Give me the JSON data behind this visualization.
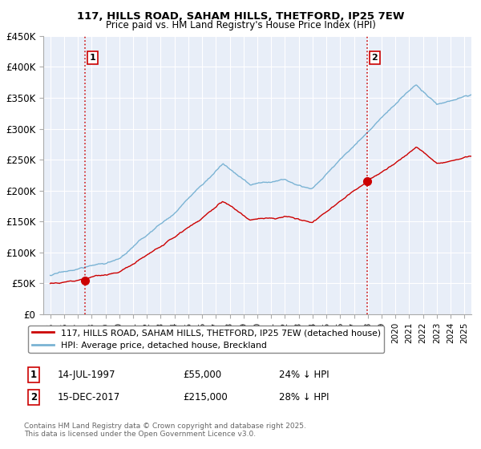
{
  "title_line1": "117, HILLS ROAD, SAHAM HILLS, THETFORD, IP25 7EW",
  "title_line2": "Price paid vs. HM Land Registry's House Price Index (HPI)",
  "hpi_color": "#7ab3d4",
  "price_color": "#cc0000",
  "vline_color": "#cc0000",
  "background_color": "#e8eef8",
  "grid_color": "#ffffff",
  "yticks": [
    0,
    50000,
    100000,
    150000,
    200000,
    250000,
    300000,
    350000,
    400000,
    450000
  ],
  "ytick_labels": [
    "£0",
    "£50K",
    "£100K",
    "£150K",
    "£200K",
    "£250K",
    "£300K",
    "£350K",
    "£400K",
    "£450K"
  ],
  "sale1_date": 1997.54,
  "sale1_price": 55000,
  "sale1_label": "1",
  "sale2_date": 2017.96,
  "sale2_price": 215000,
  "sale2_label": "2",
  "legend_entry1": "117, HILLS ROAD, SAHAM HILLS, THETFORD, IP25 7EW (detached house)",
  "legend_entry2": "HPI: Average price, detached house, Breckland",
  "annotation1_date": "14-JUL-1997",
  "annotation1_price": "£55,000",
  "annotation1_pct": "24% ↓ HPI",
  "annotation2_date": "15-DEC-2017",
  "annotation2_price": "£215,000",
  "annotation2_pct": "28% ↓ HPI",
  "copyright_text": "Contains HM Land Registry data © Crown copyright and database right 2025.\nThis data is licensed under the Open Government Licence v3.0.",
  "xmin": 1994.5,
  "xmax": 2025.5,
  "ymin": 0,
  "ymax": 450000
}
